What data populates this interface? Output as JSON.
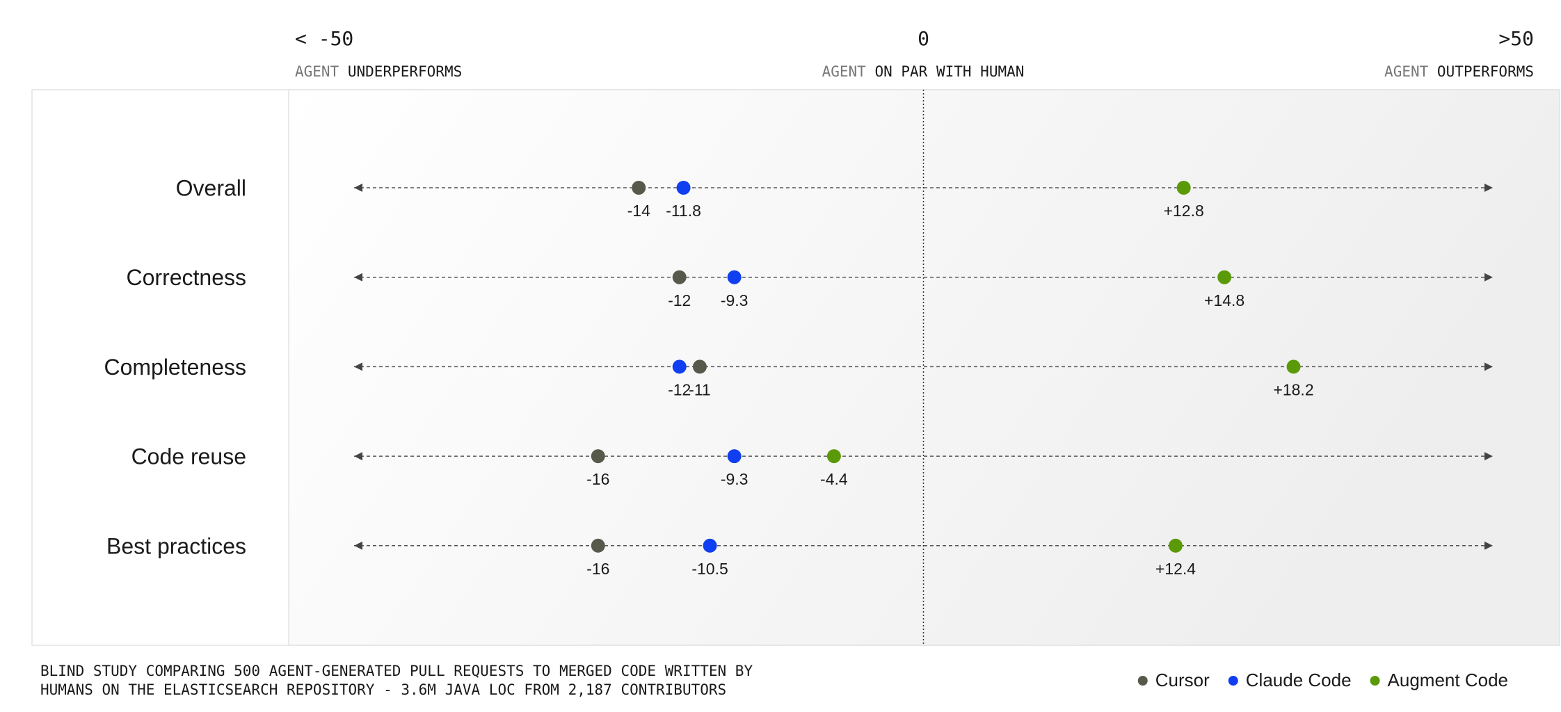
{
  "chart_data": {
    "type": "dot",
    "left_label": "< -50",
    "right_label": ">50",
    "left_caption": {
      "prefix": "AGENT",
      "text": "UNDERPERFORMS"
    },
    "center_caption": {
      "prefix": "AGENT",
      "text": "ON PAR WITH HUMAN"
    },
    "right_caption": {
      "prefix": "AGENT",
      "text": "OUTPERFORMS"
    },
    "categories": [
      "Overall",
      "Correctness",
      "Completeness",
      "Code reuse",
      "Best practices"
    ],
    "series": [
      {
        "name": "Cursor",
        "color": "#575a4b",
        "values": [
          -14,
          -12,
          -11,
          -16,
          -16
        ]
      },
      {
        "name": "Claude Code",
        "color": "#0f3ff0",
        "values": [
          -11.8,
          -9.3,
          -12,
          -9.3,
          -10.5
        ]
      },
      {
        "name": "Augment Code",
        "color": "#5a9a08",
        "values": [
          12.8,
          14.8,
          18.2,
          -4.4,
          12.4
        ],
        "value_labels": [
          "+12.8",
          "+14.8",
          "+18.2",
          "-4.4",
          "+12.4"
        ]
      }
    ],
    "xlim": [
      -28,
      28
    ],
    "xticks": [
      0
    ],
    "note": [
      "BLIND STUDY COMPARING 500 AGENT-GENERATED PULL REQUESTS TO MERGED CODE WRITTEN BY",
      "HUMANS ON THE ELASTICSEARCH REPOSITORY - 3.6M JAVA LOC FROM 2,187 CONTRIBUTORS"
    ]
  }
}
